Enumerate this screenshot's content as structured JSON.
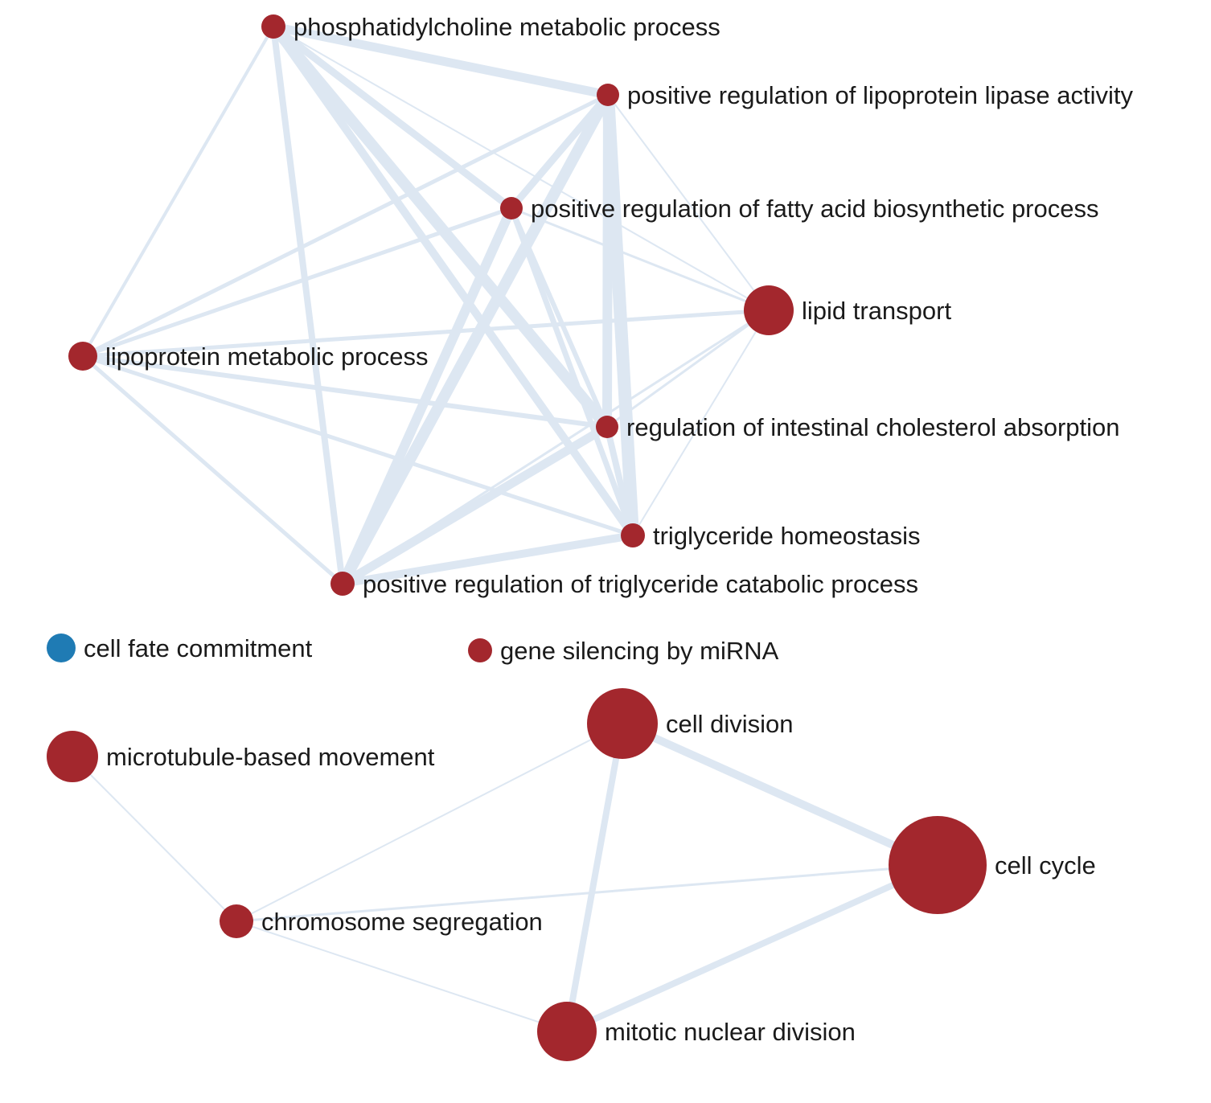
{
  "colors": {
    "node_up": "#a3272d",
    "node_down": "#1f7bb4",
    "edge": "#dde7f2"
  },
  "nodes": [
    {
      "id": "phosphatidylcholine",
      "label": "phosphatidylcholine metabolic process",
      "category": "up"
    },
    {
      "id": "lipoprotein-lipase",
      "label": "positive regulation of lipoprotein lipase activity",
      "category": "up"
    },
    {
      "id": "fatty-acid-biosynthetic",
      "label": "positive regulation of fatty acid biosynthetic process",
      "category": "up"
    },
    {
      "id": "lipid-transport",
      "label": "lipid transport",
      "category": "up"
    },
    {
      "id": "lipoprotein-metabolic",
      "label": "lipoprotein metabolic process",
      "category": "up"
    },
    {
      "id": "intestinal-cholesterol",
      "label": "regulation of intestinal cholesterol absorption",
      "category": "up"
    },
    {
      "id": "triglyceride-homeostasis",
      "label": "triglyceride homeostasis",
      "category": "up"
    },
    {
      "id": "triglyceride-catabolic",
      "label": "positive regulation of triglyceride catabolic process",
      "category": "up"
    },
    {
      "id": "cell-fate",
      "label": "cell fate commitment",
      "category": "down"
    },
    {
      "id": "gene-silencing",
      "label": "gene silencing by miRNA",
      "category": "up"
    },
    {
      "id": "cell-division",
      "label": "cell division",
      "category": "up"
    },
    {
      "id": "microtubule",
      "label": "microtubule-based movement",
      "category": "up"
    },
    {
      "id": "cell-cycle",
      "label": "cell cycle",
      "category": "up"
    },
    {
      "id": "chromosome-segregation",
      "label": "chromosome segregation",
      "category": "up"
    },
    {
      "id": "mitotic-nuclear-division",
      "label": "mitotic nuclear division",
      "category": "up"
    }
  ],
  "edges": [
    {
      "source": "phosphatidylcholine",
      "target": "lipoprotein-lipase"
    },
    {
      "source": "phosphatidylcholine",
      "target": "fatty-acid-biosynthetic"
    },
    {
      "source": "phosphatidylcholine",
      "target": "intestinal-cholesterol"
    },
    {
      "source": "phosphatidylcholine",
      "target": "triglyceride-homeostasis"
    },
    {
      "source": "phosphatidylcholine",
      "target": "triglyceride-catabolic"
    },
    {
      "source": "phosphatidylcholine",
      "target": "lipoprotein-metabolic"
    },
    {
      "source": "phosphatidylcholine",
      "target": "lipid-transport"
    },
    {
      "source": "lipoprotein-lipase",
      "target": "fatty-acid-biosynthetic"
    },
    {
      "source": "lipoprotein-lipase",
      "target": "intestinal-cholesterol"
    },
    {
      "source": "lipoprotein-lipase",
      "target": "triglyceride-homeostasis"
    },
    {
      "source": "lipoprotein-lipase",
      "target": "triglyceride-catabolic"
    },
    {
      "source": "lipoprotein-lipase",
      "target": "lipoprotein-metabolic"
    },
    {
      "source": "lipoprotein-lipase",
      "target": "lipid-transport"
    },
    {
      "source": "fatty-acid-biosynthetic",
      "target": "triglyceride-catabolic"
    },
    {
      "source": "fatty-acid-biosynthetic",
      "target": "lipoprotein-metabolic"
    },
    {
      "source": "fatty-acid-biosynthetic",
      "target": "intestinal-cholesterol"
    },
    {
      "source": "fatty-acid-biosynthetic",
      "target": "triglyceride-homeostasis"
    },
    {
      "source": "fatty-acid-biosynthetic",
      "target": "lipid-transport"
    },
    {
      "source": "lipid-transport",
      "target": "lipoprotein-metabolic"
    },
    {
      "source": "lipid-transport",
      "target": "intestinal-cholesterol"
    },
    {
      "source": "lipid-transport",
      "target": "triglyceride-homeostasis"
    },
    {
      "source": "lipid-transport",
      "target": "triglyceride-catabolic"
    },
    {
      "source": "lipoprotein-metabolic",
      "target": "intestinal-cholesterol"
    },
    {
      "source": "lipoprotein-metabolic",
      "target": "triglyceride-homeostasis"
    },
    {
      "source": "lipoprotein-metabolic",
      "target": "triglyceride-catabolic"
    },
    {
      "source": "intestinal-cholesterol",
      "target": "triglyceride-homeostasis"
    },
    {
      "source": "intestinal-cholesterol",
      "target": "triglyceride-catabolic"
    },
    {
      "source": "triglyceride-homeostasis",
      "target": "triglyceride-catabolic"
    },
    {
      "source": "cell-division",
      "target": "cell-cycle"
    },
    {
      "source": "cell-division",
      "target": "mitotic-nuclear-division"
    },
    {
      "source": "cell-division",
      "target": "chromosome-segregation"
    },
    {
      "source": "cell-cycle",
      "target": "mitotic-nuclear-division"
    },
    {
      "source": "cell-cycle",
      "target": "chromosome-segregation"
    },
    {
      "source": "chromosome-segregation",
      "target": "mitotic-nuclear-division"
    },
    {
      "source": "microtubule",
      "target": "chromosome-segregation"
    }
  ]
}
